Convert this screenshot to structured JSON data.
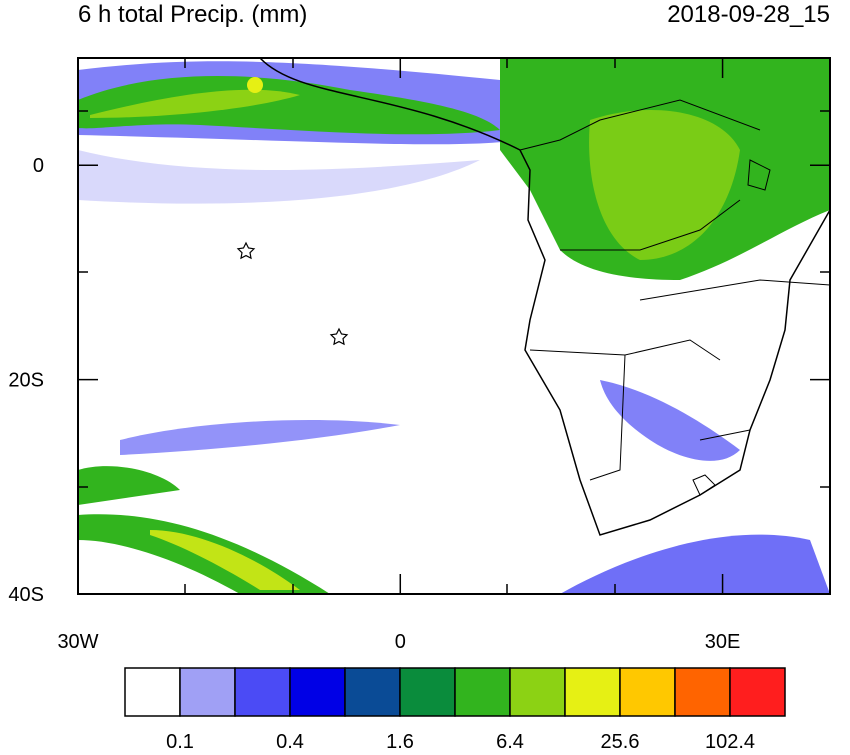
{
  "map": {
    "title": "6 h total Precip. (mm)",
    "timestamp": "2018-09-28_15",
    "xlim": [
      -30,
      40
    ],
    "ylim": [
      -40,
      10
    ],
    "lon_ticks": [
      {
        "value": -30,
        "label": "30W"
      },
      0,
      {
        "value": 30,
        "label": "30E"
      }
    ],
    "lat_ticks": [
      0,
      {
        "value": -20,
        "label": "20S"
      },
      {
        "value": -40,
        "label": "40S"
      }
    ]
  },
  "colorbar": {
    "colors": [
      "#ffffff",
      "#a0a0f5",
      "#4b4bf5",
      "#0000e6",
      "#0a4b96",
      "#0a8c3c",
      "#32b41e",
      "#8cd214",
      "#e6f014",
      "#ffc800",
      "#ff6400",
      "#ff1e1e"
    ],
    "labels": [
      "0.1",
      "0.4",
      "1.6",
      "6.4",
      "25.6",
      "102.4"
    ]
  }
}
